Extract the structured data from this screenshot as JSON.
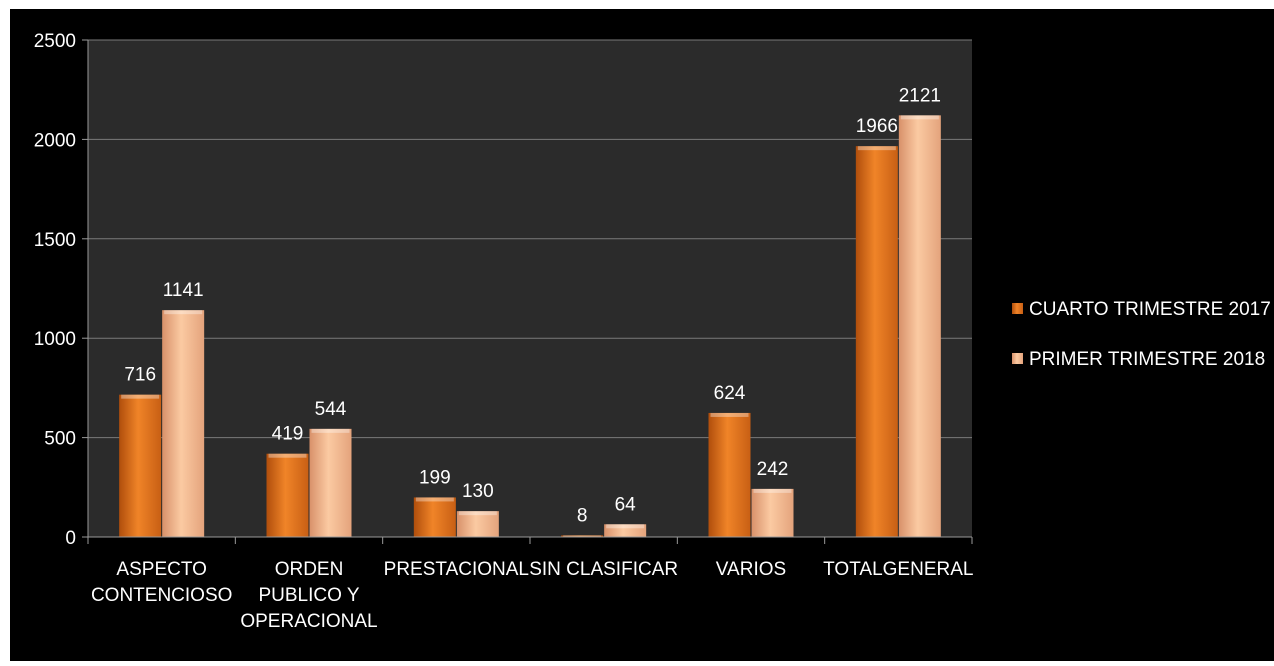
{
  "chart_data": {
    "type": "bar",
    "categories": [
      [
        "ASPECTO",
        "CONTENCIOSO"
      ],
      [
        "ORDEN",
        "PUBLICO Y",
        "OPERACIONAL"
      ],
      [
        "PRESTACIONAL"
      ],
      [
        "SIN CLASIFICAR"
      ],
      [
        "VARIOS"
      ],
      [
        "TOTALGENERAL"
      ]
    ],
    "series": [
      {
        "name": "CUARTO TRIMESTRE 2017",
        "values": [
          716,
          419,
          199,
          8,
          624,
          1966
        ],
        "color": "#e8731f"
      },
      {
        "name": "PRIMER TRIMESTRE 2018",
        "values": [
          1141,
          544,
          130,
          64,
          242,
          2121
        ],
        "color": "#f3b88a"
      }
    ],
    "ylim": [
      0,
      2500
    ],
    "yticks": [
      0,
      500,
      1000,
      1500,
      2000,
      2500
    ],
    "grid": true,
    "legend_position": "right",
    "background": "#000000",
    "plot_background": "#2b2b2b"
  }
}
